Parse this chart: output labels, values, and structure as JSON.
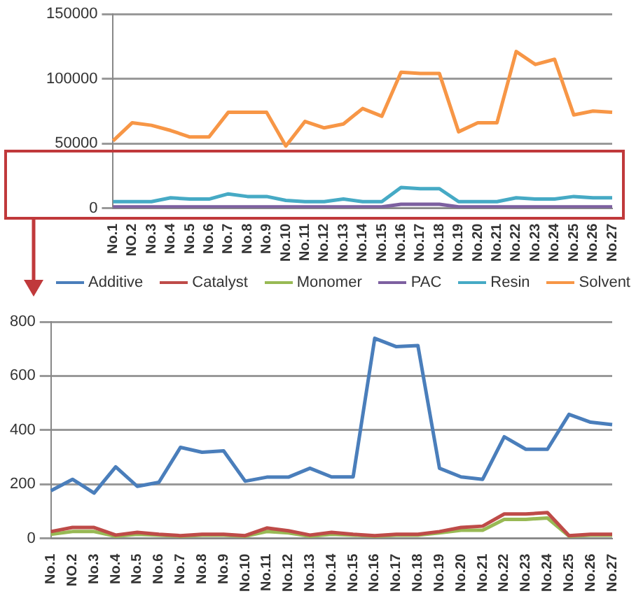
{
  "chart_data": [
    {
      "type": "line",
      "categories": [
        "No.1",
        "NO.2",
        "No.3",
        "No.4",
        "No.5",
        "No.6",
        "No.7",
        "No.8",
        "No.9",
        "No.10",
        "No.11",
        "No.12",
        "No.13",
        "No.14",
        "No.15",
        "No.16",
        "No.17",
        "No.18",
        "No.19",
        "No.20",
        "No.21",
        "No.22",
        "No.23",
        "No.24",
        "No.25",
        "No.26",
        "No.27"
      ],
      "series": [
        {
          "name": "PAC",
          "color": "#7d60a0",
          "values": [
            1000,
            1000,
            1000,
            1000,
            1000,
            1000,
            1000,
            1000,
            1000,
            1000,
            1000,
            1000,
            1000,
            1000,
            1000,
            3000,
            3000,
            3000,
            1000,
            1000,
            1000,
            1000,
            1000,
            1000,
            1000,
            1000,
            1000
          ]
        },
        {
          "name": "Resin",
          "color": "#46aac5",
          "values": [
            5000,
            5000,
            5000,
            8000,
            7000,
            7000,
            11000,
            9000,
            9000,
            6000,
            5000,
            5000,
            7000,
            5000,
            5000,
            16000,
            15000,
            15000,
            5000,
            5000,
            5000,
            8000,
            7000,
            7000,
            9000,
            8000,
            8000
          ]
        },
        {
          "name": "Solvent",
          "color": "#f79646",
          "values": [
            52000,
            66000,
            64000,
            60000,
            55000,
            55000,
            74000,
            74000,
            74000,
            48000,
            67000,
            62000,
            65000,
            77000,
            71000,
            105000,
            104000,
            104000,
            59000,
            66000,
            66000,
            121000,
            111000,
            115000,
            72000,
            75000,
            74000
          ]
        }
      ],
      "ylim": [
        0,
        150000
      ],
      "yticks": [
        0,
        50000,
        100000,
        150000
      ],
      "grid": "y",
      "legend": "bottom",
      "marker": "none",
      "line_style": "solid"
    },
    {
      "type": "line",
      "categories": [
        "No.1",
        "NO.2",
        "No.3",
        "No.4",
        "No.5",
        "No.6",
        "No.7",
        "No.8",
        "No.9",
        "No.10",
        "No.11",
        "No.12",
        "No.13",
        "No.14",
        "No.15",
        "No.16",
        "No.17",
        "No.18",
        "No.19",
        "No.20",
        "No.21",
        "No.22",
        "No.23",
        "No.24",
        "No.25",
        "No.26",
        "No.27"
      ],
      "series": [
        {
          "name": "Additive",
          "color": "#4a7ebb",
          "values": [
            176,
            218,
            167,
            264,
            192,
            207,
            336,
            318,
            323,
            211,
            226,
            226,
            259,
            227,
            227,
            739,
            708,
            712,
            259,
            227,
            218,
            375,
            329,
            329,
            458,
            429,
            420
          ]
        },
        {
          "name": "Catalyst",
          "color": "#be4b48",
          "values": [
            25,
            40,
            40,
            12,
            22,
            15,
            10,
            15,
            15,
            10,
            38,
            28,
            12,
            22,
            15,
            10,
            15,
            15,
            25,
            40,
            45,
            90,
            90,
            95,
            10,
            15,
            15
          ]
        },
        {
          "name": "Monomer",
          "color": "#98b954",
          "values": [
            15,
            25,
            25,
            8,
            15,
            12,
            8,
            12,
            12,
            8,
            25,
            20,
            8,
            15,
            12,
            8,
            12,
            12,
            20,
            30,
            30,
            70,
            70,
            75,
            8,
            12,
            12
          ]
        }
      ],
      "ylim": [
        0,
        800
      ],
      "yticks": [
        0,
        200,
        400,
        600,
        800
      ],
      "grid": "y",
      "legend": "top",
      "marker": "none",
      "line_style": "solid"
    }
  ]
}
